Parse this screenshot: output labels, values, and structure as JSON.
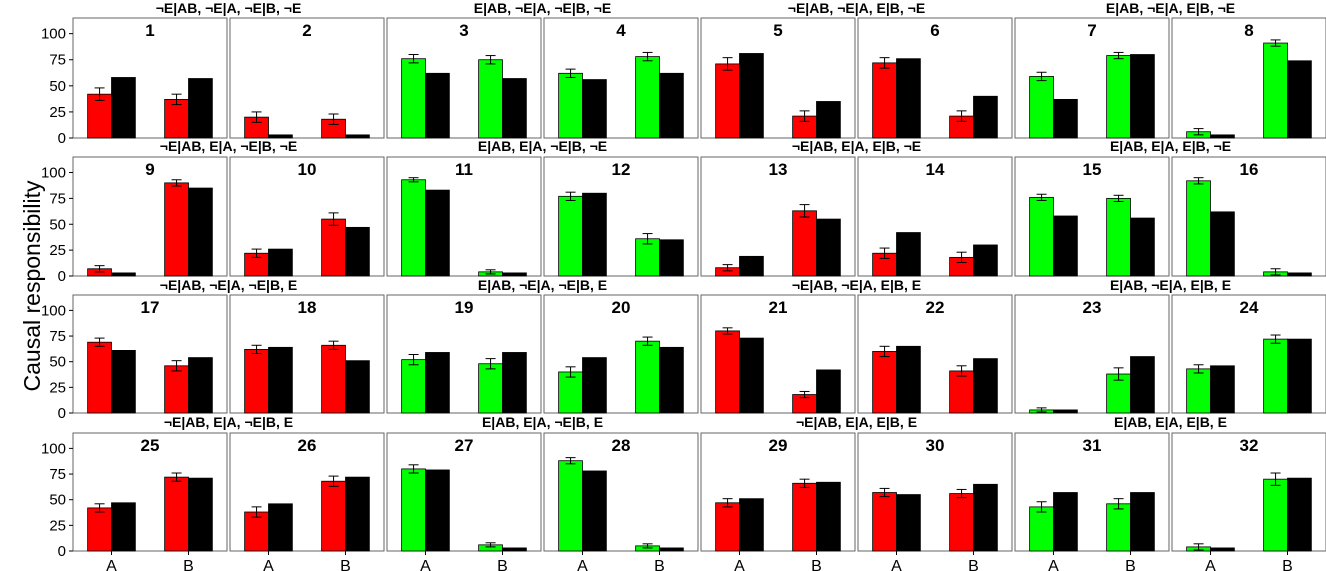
{
  "chart_data": {
    "type": "bar",
    "ylabel": "Causal responsibility",
    "x_categories": [
      "A",
      "B"
    ],
    "y_ticks": [
      0,
      25,
      50,
      75,
      100
    ],
    "ylim": [
      0,
      115
    ],
    "grid": false,
    "colors": {
      "red": "#ff0000",
      "green": "#00ff00",
      "black": "#000000"
    },
    "strip_titles": [
      "¬E|AB, ¬E|A, ¬E|B, ¬E",
      "E|AB, ¬E|A, ¬E|B, ¬E",
      "¬E|AB, ¬E|A, E|B, ¬E",
      "E|AB, ¬E|A, E|B, ¬E",
      "¬E|AB, E|A, ¬E|B, ¬E",
      "E|AB, E|A, ¬E|B, ¬E",
      "¬E|AB, E|A, E|B, ¬E",
      "E|AB, E|A, E|B, ¬E",
      "¬E|AB, ¬E|A, ¬E|B, E",
      "E|AB, ¬E|A, ¬E|B, E",
      "¬E|AB, ¬E|A, E|B, E",
      "E|AB, ¬E|A, E|B, E",
      "¬E|AB, E|A, ¬E|B, E",
      "E|AB, E|A, ¬E|B, E",
      "¬E|AB, E|A, E|B, E",
      "E|AB, E|A, E|B, E"
    ],
    "panels": [
      {
        "label": "1",
        "color": "red",
        "A": [
          42,
          58
        ],
        "B": [
          37,
          57
        ],
        "errA": 6,
        "errB": 5
      },
      {
        "label": "2",
        "color": "red",
        "A": [
          20,
          3
        ],
        "B": [
          18,
          3
        ],
        "errA": 5,
        "errB": 5
      },
      {
        "label": "3",
        "color": "green",
        "A": [
          76,
          62
        ],
        "B": [
          75,
          57
        ],
        "errA": 4,
        "errB": 4
      },
      {
        "label": "4",
        "color": "green",
        "A": [
          62,
          56
        ],
        "B": [
          78,
          62
        ],
        "errA": 4,
        "errB": 4
      },
      {
        "label": "5",
        "color": "red",
        "A": [
          71,
          81
        ],
        "B": [
          21,
          35
        ],
        "errA": 6,
        "errB": 5
      },
      {
        "label": "6",
        "color": "red",
        "A": [
          72,
          76
        ],
        "B": [
          21,
          40
        ],
        "errA": 5,
        "errB": 5
      },
      {
        "label": "7",
        "color": "green",
        "A": [
          59,
          37
        ],
        "B": [
          79,
          80
        ],
        "errA": 4,
        "errB": 3
      },
      {
        "label": "8",
        "color": "green",
        "A": [
          6,
          3
        ],
        "B": [
          91,
          74
        ],
        "errA": 3,
        "errB": 3
      },
      {
        "label": "9",
        "color": "red",
        "A": [
          7,
          3
        ],
        "B": [
          90,
          85
        ],
        "errA": 3,
        "errB": 3
      },
      {
        "label": "10",
        "color": "red",
        "A": [
          22,
          26
        ],
        "B": [
          55,
          47
        ],
        "errA": 4,
        "errB": 6
      },
      {
        "label": "11",
        "color": "green",
        "A": [
          93,
          83
        ],
        "B": [
          4,
          3
        ],
        "errA": 2,
        "errB": 2
      },
      {
        "label": "12",
        "color": "green",
        "A": [
          77,
          80
        ],
        "B": [
          36,
          35
        ],
        "errA": 4,
        "errB": 5
      },
      {
        "label": "13",
        "color": "red",
        "A": [
          8,
          19
        ],
        "B": [
          63,
          55
        ],
        "errA": 3,
        "errB": 6
      },
      {
        "label": "14",
        "color": "red",
        "A": [
          22,
          42
        ],
        "B": [
          18,
          30
        ],
        "errA": 5,
        "errB": 5
      },
      {
        "label": "15",
        "color": "green",
        "A": [
          76,
          58
        ],
        "B": [
          75,
          56
        ],
        "errA": 3,
        "errB": 3
      },
      {
        "label": "16",
        "color": "green",
        "A": [
          92,
          62
        ],
        "B": [
          4,
          3
        ],
        "errA": 3,
        "errB": 3
      },
      {
        "label": "17",
        "color": "red",
        "A": [
          69,
          61
        ],
        "B": [
          46,
          54
        ],
        "errA": 4,
        "errB": 5
      },
      {
        "label": "18",
        "color": "red",
        "A": [
          62,
          64
        ],
        "B": [
          66,
          51
        ],
        "errA": 4,
        "errB": 4
      },
      {
        "label": "19",
        "color": "green",
        "A": [
          52,
          59
        ],
        "B": [
          48,
          59
        ],
        "errA": 5,
        "errB": 5
      },
      {
        "label": "20",
        "color": "green",
        "A": [
          40,
          54
        ],
        "B": [
          70,
          64
        ],
        "errA": 5,
        "errB": 4
      },
      {
        "label": "21",
        "color": "red",
        "A": [
          80,
          73
        ],
        "B": [
          18,
          42
        ],
        "errA": 3,
        "errB": 3
      },
      {
        "label": "22",
        "color": "red",
        "A": [
          60,
          65
        ],
        "B": [
          41,
          53
        ],
        "errA": 5,
        "errB": 5
      },
      {
        "label": "23",
        "color": "green",
        "A": [
          3,
          3
        ],
        "B": [
          38,
          55
        ],
        "errA": 2,
        "errB": 6
      },
      {
        "label": "24",
        "color": "green",
        "A": [
          43,
          46
        ],
        "B": [
          72,
          72
        ],
        "errA": 4,
        "errB": 4
      },
      {
        "label": "25",
        "color": "red",
        "A": [
          42,
          47
        ],
        "B": [
          72,
          71
        ],
        "errA": 4,
        "errB": 4
      },
      {
        "label": "26",
        "color": "red",
        "A": [
          38,
          46
        ],
        "B": [
          68,
          72
        ],
        "errA": 5,
        "errB": 5
      },
      {
        "label": "27",
        "color": "green",
        "A": [
          80,
          79
        ],
        "B": [
          6,
          3
        ],
        "errA": 4,
        "errB": 2
      },
      {
        "label": "28",
        "color": "green",
        "A": [
          88,
          78
        ],
        "B": [
          5,
          3
        ],
        "errA": 3,
        "errB": 2
      },
      {
        "label": "29",
        "color": "red",
        "A": [
          47,
          51
        ],
        "B": [
          66,
          67
        ],
        "errA": 4,
        "errB": 4
      },
      {
        "label": "30",
        "color": "red",
        "A": [
          57,
          55
        ],
        "B": [
          56,
          65
        ],
        "errA": 4,
        "errB": 4
      },
      {
        "label": "31",
        "color": "green",
        "A": [
          43,
          57
        ],
        "B": [
          46,
          57
        ],
        "errA": 5,
        "errB": 5
      },
      {
        "label": "32",
        "color": "green",
        "A": [
          4,
          3
        ],
        "B": [
          70,
          71
        ],
        "errA": 3,
        "errB": 6
      }
    ]
  }
}
